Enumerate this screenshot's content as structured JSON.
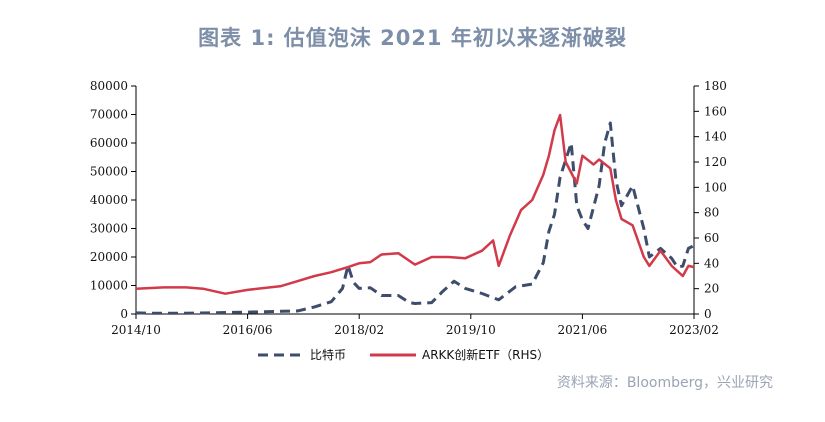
{
  "title": "图表 1:  估值泡沫 2021 年初以来逐渐破裂",
  "source": "资料来源：Bloomberg，兴业研究",
  "colors": {
    "btc": "#3d4d6b",
    "arkk": "#d23a4a",
    "title": "#7d8ea8",
    "source": "#9aa4b5"
  },
  "chart_data": {
    "type": "line",
    "x_ticks": [
      "2014/10",
      "2016/06",
      "2018/02",
      "2019/10",
      "2021/06",
      "2023/02"
    ],
    "xlim": [
      "2014/10",
      "2023/02"
    ],
    "ylim_left": [
      0,
      80000
    ],
    "ylim_right": [
      0,
      180
    ],
    "yticks_left": [
      0,
      10000,
      20000,
      30000,
      40000,
      50000,
      60000,
      70000,
      80000
    ],
    "yticks_right": [
      0,
      20,
      40,
      60,
      80,
      100,
      120,
      140,
      160,
      180
    ],
    "legend_position": "bottom",
    "series": [
      {
        "name": "比特币",
        "axis": "left",
        "style": "dashed",
        "color": "#3d4d6b",
        "points": [
          [
            "2014/10",
            380
          ],
          [
            "2015/01",
            250
          ],
          [
            "2015/06",
            240
          ],
          [
            "2015/12",
            430
          ],
          [
            "2016/06",
            670
          ],
          [
            "2016/12",
            960
          ],
          [
            "2017/03",
            1100
          ],
          [
            "2017/06",
            2500
          ],
          [
            "2017/09",
            4300
          ],
          [
            "2017/11",
            9000
          ],
          [
            "2017/12",
            17000
          ],
          [
            "2018/01",
            11000
          ],
          [
            "2018/02",
            9000
          ],
          [
            "2018/04",
            9200
          ],
          [
            "2018/06",
            6500
          ],
          [
            "2018/09",
            6500
          ],
          [
            "2018/11",
            4000
          ],
          [
            "2018/12",
            3700
          ],
          [
            "2019/03",
            4000
          ],
          [
            "2019/05",
            8000
          ],
          [
            "2019/07",
            11500
          ],
          [
            "2019/09",
            9000
          ],
          [
            "2019/12",
            7200
          ],
          [
            "2020/03",
            5000
          ],
          [
            "2020/06",
            9500
          ],
          [
            "2020/09",
            10500
          ],
          [
            "2020/11",
            18000
          ],
          [
            "2020/12",
            29000
          ],
          [
            "2021/01",
            35000
          ],
          [
            "2021/02",
            48000
          ],
          [
            "2021/04",
            60000
          ],
          [
            "2021/05",
            38000
          ],
          [
            "2021/06",
            33000
          ],
          [
            "2021/07",
            30000
          ],
          [
            "2021/09",
            45000
          ],
          [
            "2021/10",
            60000
          ],
          [
            "2021/11",
            67000
          ],
          [
            "2021/12",
            47000
          ],
          [
            "2022/01",
            38000
          ],
          [
            "2022/03",
            45000
          ],
          [
            "2022/05",
            30000
          ],
          [
            "2022/06",
            20000
          ],
          [
            "2022/08",
            23000
          ],
          [
            "2022/10",
            19500
          ],
          [
            "2022/11",
            16500
          ],
          [
            "2022/12",
            16800
          ],
          [
            "2023/01",
            23000
          ],
          [
            "2023/02",
            24000
          ]
        ]
      },
      {
        "name": "ARKK创新ETF（RHS）",
        "axis": "right",
        "style": "solid",
        "color": "#d23a4a",
        "points": [
          [
            "2014/10",
            20
          ],
          [
            "2015/03",
            21
          ],
          [
            "2015/07",
            21
          ],
          [
            "2015/10",
            20
          ],
          [
            "2016/02",
            16
          ],
          [
            "2016/06",
            19
          ],
          [
            "2016/12",
            22
          ],
          [
            "2017/03",
            26
          ],
          [
            "2017/06",
            30
          ],
          [
            "2017/09",
            33
          ],
          [
            "2017/12",
            37
          ],
          [
            "2018/02",
            40
          ],
          [
            "2018/04",
            41
          ],
          [
            "2018/06",
            47
          ],
          [
            "2018/09",
            48
          ],
          [
            "2018/12",
            39
          ],
          [
            "2019/03",
            45
          ],
          [
            "2019/06",
            45
          ],
          [
            "2019/09",
            44
          ],
          [
            "2019/12",
            50
          ],
          [
            "2020/02",
            58
          ],
          [
            "2020/03",
            38
          ],
          [
            "2020/05",
            62
          ],
          [
            "2020/07",
            82
          ],
          [
            "2020/09",
            90
          ],
          [
            "2020/11",
            110
          ],
          [
            "2020/12",
            125
          ],
          [
            "2021/01",
            145
          ],
          [
            "2021/02",
            157
          ],
          [
            "2021/03",
            120
          ],
          [
            "2021/05",
            103
          ],
          [
            "2021/06",
            125
          ],
          [
            "2021/08",
            118
          ],
          [
            "2021/09",
            122
          ],
          [
            "2021/11",
            115
          ],
          [
            "2021/12",
            90
          ],
          [
            "2022/01",
            75
          ],
          [
            "2022/03",
            70
          ],
          [
            "2022/05",
            45
          ],
          [
            "2022/06",
            38
          ],
          [
            "2022/08",
            50
          ],
          [
            "2022/10",
            38
          ],
          [
            "2022/12",
            30
          ],
          [
            "2023/01",
            38
          ],
          [
            "2023/02",
            37
          ]
        ]
      }
    ]
  }
}
